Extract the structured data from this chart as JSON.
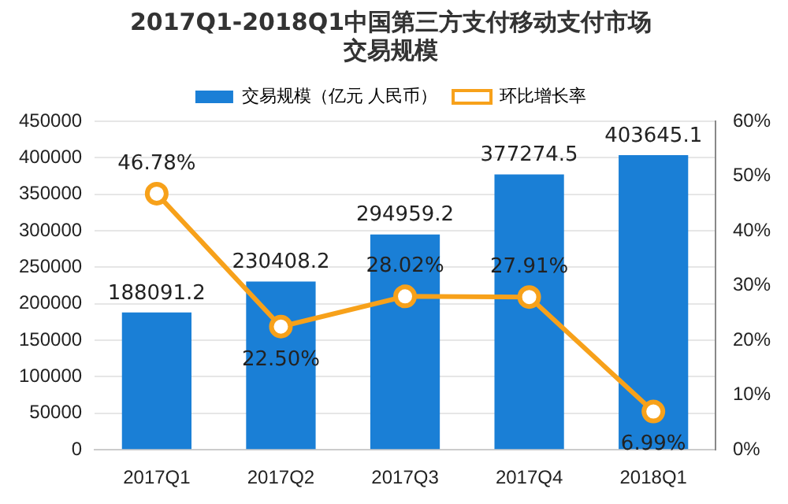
{
  "chart_data": {
    "type": "bar",
    "title": "2017Q1-2018Q1中国第三方支付移动支付市场交易规模",
    "categories": [
      "2017Q1",
      "2017Q2",
      "2017Q3",
      "2017Q4",
      "2018Q1"
    ],
    "series": [
      {
        "name": "交易规模（亿元 人民币）",
        "color": "#1a7fd6",
        "values": [
          188091.2,
          230408.2,
          294959.2,
          377274.5,
          403645.1
        ],
        "value_labels": [
          "188091.2",
          "230408.2",
          "294959.2",
          "377274.5",
          "403645.1"
        ]
      },
      {
        "name": "环比增长率",
        "type": "line",
        "axis": "y2",
        "color": "#f7a11a",
        "values": [
          46.78,
          22.5,
          28.02,
          27.91,
          6.99
        ],
        "value_labels": [
          "46.78%",
          "22.50%",
          "28.02%",
          "27.91%",
          "6.99%"
        ]
      }
    ],
    "ylim": [
      0,
      450000
    ],
    "yticks": [
      0,
      50000,
      100000,
      150000,
      200000,
      250000,
      300000,
      350000,
      400000,
      450000
    ],
    "y2lim": [
      0,
      60
    ],
    "y2ticks": [
      {
        "value": 0,
        "label": "0%"
      },
      {
        "value": 10,
        "label": "10%"
      },
      {
        "value": 20,
        "label": "20%"
      },
      {
        "value": 30,
        "label": "30%"
      },
      {
        "value": 40,
        "label": "40%"
      },
      {
        "value": 50,
        "label": "50%"
      },
      {
        "value": 60,
        "label": "60%"
      }
    ],
    "grid": "y",
    "legend": "top",
    "marker": "circle"
  }
}
